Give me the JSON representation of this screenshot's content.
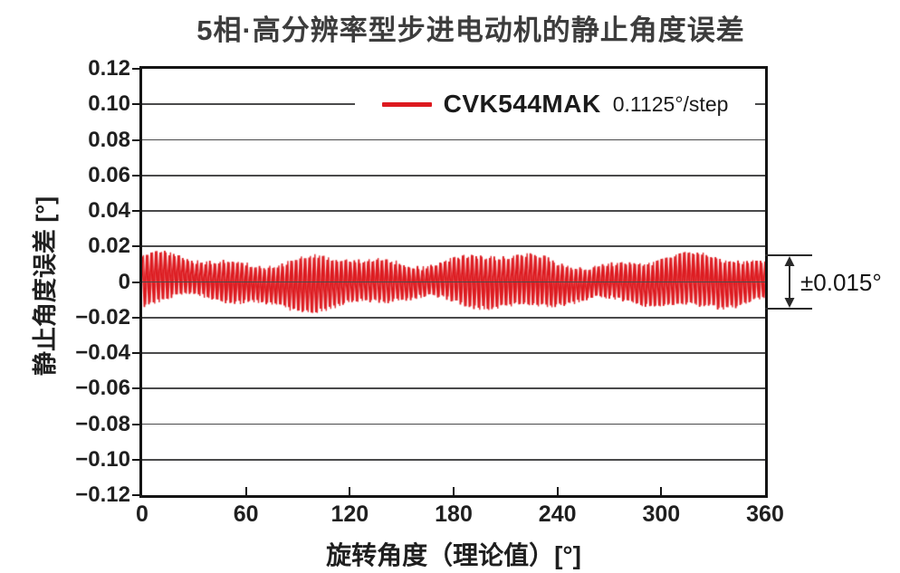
{
  "page": {
    "background": "#ffffff"
  },
  "chart_data": {
    "type": "line",
    "title": "5相·高分辨率型步进电动机的静止角度误差",
    "xlabel": "旋转角度（理论值）[°]",
    "ylabel": "静止角度误差 [°]",
    "xlim": [
      0,
      360
    ],
    "ylim": [
      -0.12,
      0.12
    ],
    "x_ticks": [
      0,
      60,
      120,
      180,
      240,
      300,
      360
    ],
    "x_tick_labels": [
      "0",
      "60",
      "120",
      "180",
      "240",
      "300",
      "360"
    ],
    "y_ticks": [
      0.12,
      0.1,
      0.08,
      0.06,
      0.04,
      0.02,
      0,
      -0.02,
      -0.04,
      -0.06,
      -0.08,
      -0.1,
      -0.12
    ],
    "y_tick_labels": [
      "0.12",
      "0.10",
      "0.08",
      "0.06",
      "0.04",
      "0.02",
      "0",
      "−0.02",
      "−0.04",
      "−0.06",
      "−0.08",
      "−0.10",
      "−0.12"
    ],
    "grid": "horizontal-only",
    "legend": {
      "label": "CVK544MAK",
      "detail": "0.1125°/step",
      "position": "top-center",
      "anchor_value": 0.1
    },
    "annotation": {
      "text": "±0.015°",
      "upper": 0.015,
      "lower": -0.015
    },
    "colors": {
      "series": "#dd1a1f",
      "grid": "#4a4a4b",
      "frame": "#141414",
      "text": "#1f1f1f",
      "title": "#3d3d3d"
    },
    "series": [
      {
        "name": "CVK544MAK",
        "step_resolution": "0.1125°/step",
        "color": "#dd1a1f",
        "signal": {
          "kind": "dense-oscillation-around-zero",
          "mean": 0,
          "teeth": 138,
          "base_amplitude": 0.0105,
          "modulations_top": [
            {
              "cycles": 3.5,
              "amp": 0.0028,
              "phase": 1.2
            },
            {
              "cycles": 8.2,
              "amp": 0.0017,
              "phase": 0.4
            }
          ],
          "modulations_bottom": [
            {
              "cycles": 3.1,
              "amp": 0.0028,
              "phase": 2.9
            },
            {
              "cycles": 7.4,
              "amp": 0.0017,
              "phase": 1.7
            }
          ],
          "baseline_wobble": {
            "cycles": 2.2,
            "amp": 0.001,
            "phase": 0.7
          },
          "jitter": 0.0024,
          "max_abs": 0.0175
        }
      }
    ]
  }
}
